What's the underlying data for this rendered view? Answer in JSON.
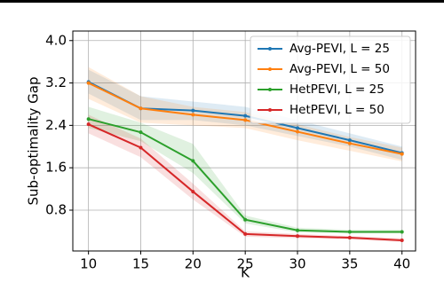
{
  "chart_data": {
    "type": "line",
    "xlabel": "K",
    "ylabel": "Sub-optimality Gap",
    "x": [
      10,
      15,
      20,
      25,
      30,
      35,
      40
    ],
    "series": [
      {
        "name": "Avg-PEVI, L = 25",
        "color": "#1f77b4",
        "values": [
          3.22,
          2.72,
          2.68,
          2.58,
          2.35,
          2.12,
          1.88
        ],
        "upper": [
          3.45,
          2.95,
          2.85,
          2.75,
          2.5,
          2.25,
          2.0
        ],
        "lower": [
          3.0,
          2.5,
          2.5,
          2.4,
          2.2,
          2.0,
          1.75
        ]
      },
      {
        "name": "Avg-PEVI, L = 50",
        "color": "#ff7f0e",
        "values": [
          3.2,
          2.72,
          2.6,
          2.5,
          2.28,
          2.06,
          1.86
        ],
        "upper": [
          3.5,
          2.95,
          2.75,
          2.65,
          2.42,
          2.18,
          1.98
        ],
        "lower": [
          2.9,
          2.45,
          2.4,
          2.35,
          2.12,
          1.92,
          1.72
        ]
      },
      {
        "name": "HetPEVI, L = 25",
        "color": "#2ca02c",
        "values": [
          2.52,
          2.27,
          1.73,
          0.62,
          0.42,
          0.39,
          0.39
        ],
        "upper": [
          2.75,
          2.45,
          2.05,
          0.7,
          0.47,
          0.43,
          0.43
        ],
        "lower": [
          2.35,
          2.1,
          1.5,
          0.55,
          0.38,
          0.36,
          0.36
        ]
      },
      {
        "name": "HetPEVI, L = 50",
        "color": "#d62728",
        "values": [
          2.42,
          1.98,
          1.15,
          0.35,
          0.31,
          0.28,
          0.23
        ],
        "upper": [
          2.6,
          2.15,
          1.3,
          0.4,
          0.35,
          0.31,
          0.27
        ],
        "lower": [
          2.25,
          1.8,
          1.0,
          0.3,
          0.27,
          0.25,
          0.2
        ]
      }
    ],
    "xlim": [
      8.5,
      41.3
    ],
    "ylim": [
      0.03,
      4.18
    ],
    "xticks": [
      10,
      15,
      20,
      25,
      30,
      35,
      40
    ],
    "yticks": [
      0.8,
      1.6,
      2.4,
      3.2,
      {
        "value": 4.0,
        "label": "4.0"
      }
    ],
    "grid": true,
    "legend": "upper right"
  }
}
